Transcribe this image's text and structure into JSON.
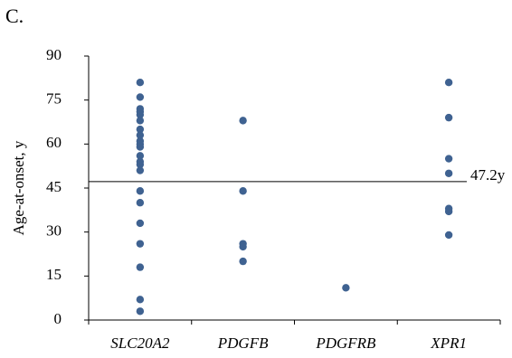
{
  "chart_data": {
    "type": "strip",
    "panel_label": "C.",
    "y_label": "Age-at-onset, y",
    "categories": [
      "SLC20A2",
      "PDGFB",
      "PDGFRB",
      "XPR1"
    ],
    "values": [
      [
        81,
        76,
        72,
        71,
        70,
        68,
        65,
        63,
        61,
        60,
        59,
        56,
        54,
        53,
        51,
        44,
        40,
        33,
        26,
        18,
        7,
        3
      ],
      [
        68,
        44,
        26,
        25,
        20
      ],
      [
        11
      ],
      [
        81,
        69,
        55,
        50,
        38,
        37,
        29
      ]
    ],
    "color": "#3f6291",
    "ylim": [
      0,
      90
    ],
    "yticks": [
      0,
      15,
      30,
      45,
      60,
      75,
      90
    ],
    "grid": false,
    "reference_line": {
      "value": 47.2,
      "label": "47.2y"
    }
  }
}
